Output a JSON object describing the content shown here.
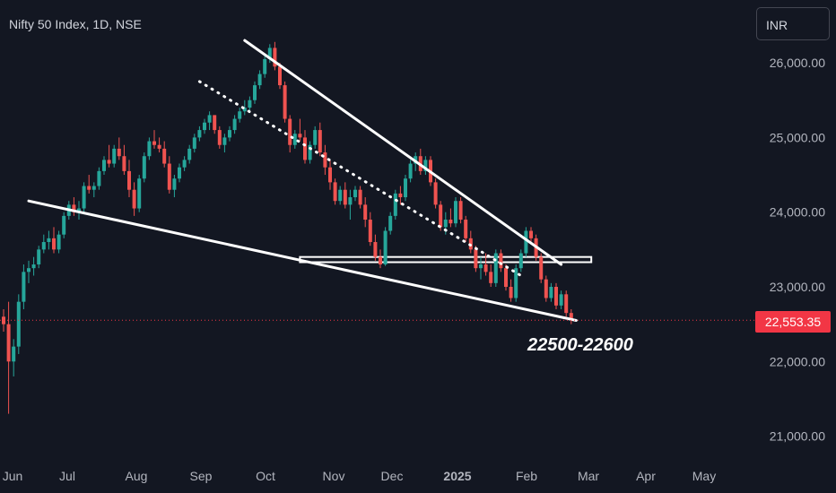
{
  "header": {
    "title": "Nifty 50 Index, 1D, NSE",
    "currency": "INR"
  },
  "colors": {
    "background": "#131722",
    "up": "#26a69a",
    "down": "#ef5350",
    "trendline": "#ffffff",
    "last_price": "#f23645",
    "axis_text": "#b2b5be"
  },
  "chart_data": {
    "type": "candlestick",
    "symbol": "Nifty 50 Index",
    "interval": "1D",
    "exchange": "NSE",
    "y_ticks": [
      "21,000.00",
      "22,000.00",
      "23,000.00",
      "24,000.00",
      "25,000.00",
      "26,000.00"
    ],
    "ylim": [
      20600,
      26800
    ],
    "x_ticks": [
      "Jun",
      "Jul",
      "Aug",
      "Sep",
      "Oct",
      "Nov",
      "Dec",
      "2025",
      "Feb",
      "Mar",
      "Apr",
      "May"
    ],
    "last_price": 22553.35,
    "last_price_label": "22,553.35",
    "annotation": "22500-22600",
    "grid": false,
    "ohlc": [
      [
        22600,
        22700,
        22400,
        22500
      ],
      [
        22500,
        22800,
        21300,
        22000
      ],
      [
        22000,
        22300,
        21800,
        22200
      ],
      [
        22200,
        22900,
        22100,
        22800
      ],
      [
        22800,
        23300,
        22700,
        23200
      ],
      [
        23200,
        23350,
        23050,
        23250
      ],
      [
        23250,
        23400,
        23150,
        23300
      ],
      [
        23300,
        23550,
        23250,
        23500
      ],
      [
        23500,
        23700,
        23450,
        23600
      ],
      [
        23600,
        23750,
        23500,
        23650
      ],
      [
        23650,
        23800,
        23450,
        23500
      ],
      [
        23500,
        23750,
        23450,
        23700
      ],
      [
        23700,
        24000,
        23650,
        23950
      ],
      [
        23950,
        24150,
        23900,
        24100
      ],
      [
        24100,
        24200,
        23950,
        24000
      ],
      [
        24000,
        24150,
        23900,
        24050
      ],
      [
        24050,
        24400,
        24000,
        24350
      ],
      [
        24350,
        24500,
        24250,
        24300
      ],
      [
        24300,
        24400,
        24200,
        24350
      ],
      [
        24350,
        24600,
        24300,
        24550
      ],
      [
        24550,
        24750,
        24500,
        24700
      ],
      [
        24700,
        24900,
        24600,
        24650
      ],
      [
        24650,
        24900,
        24600,
        24850
      ],
      [
        24850,
        25000,
        24700,
        24750
      ],
      [
        24750,
        24900,
        24500,
        24550
      ],
      [
        24550,
        24700,
        24200,
        24300
      ],
      [
        24300,
        24400,
        23950,
        24050
      ],
      [
        24050,
        24500,
        24000,
        24450
      ],
      [
        24450,
        24800,
        24400,
        24750
      ],
      [
        24750,
        25000,
        24700,
        24950
      ],
      [
        24950,
        25100,
        24850,
        24900
      ],
      [
        24900,
        25000,
        24800,
        24850
      ],
      [
        24850,
        24950,
        24600,
        24650
      ],
      [
        24650,
        24750,
        24250,
        24300
      ],
      [
        24300,
        24500,
        24200,
        24450
      ],
      [
        24450,
        24650,
        24400,
        24600
      ],
      [
        24600,
        24750,
        24550,
        24700
      ],
      [
        24700,
        24900,
        24650,
        24850
      ],
      [
        24850,
        25050,
        24800,
        25000
      ],
      [
        25000,
        25150,
        24950,
        25100
      ],
      [
        25100,
        25250,
        25050,
        25200
      ],
      [
        25200,
        25350,
        25100,
        25300
      ],
      [
        25300,
        25300,
        25050,
        25100
      ],
      [
        25100,
        25150,
        24850,
        24900
      ],
      [
        24900,
        25050,
        24800,
        25000
      ],
      [
        25000,
        25150,
        24950,
        25100
      ],
      [
        25100,
        25300,
        25050,
        25250
      ],
      [
        25250,
        25400,
        25200,
        25350
      ],
      [
        25350,
        25500,
        25300,
        25400
      ],
      [
        25400,
        25550,
        25350,
        25500
      ],
      [
        25500,
        25750,
        25450,
        25700
      ],
      [
        25700,
        25900,
        25650,
        25850
      ],
      [
        25850,
        26100,
        25800,
        26050
      ],
      [
        26050,
        26250,
        26000,
        26200
      ],
      [
        26200,
        26280,
        25900,
        25950
      ],
      [
        25950,
        26000,
        25650,
        25700
      ],
      [
        25700,
        25750,
        25200,
        25250
      ],
      [
        25250,
        25300,
        24800,
        24900
      ],
      [
        24900,
        25100,
        24850,
        25050
      ],
      [
        25050,
        25250,
        24950,
        25000
      ],
      [
        25000,
        25100,
        24650,
        24700
      ],
      [
        24700,
        24950,
        24650,
        24900
      ],
      [
        24900,
        25150,
        24850,
        25100
      ],
      [
        25100,
        25200,
        24750,
        24800
      ],
      [
        24800,
        24900,
        24500,
        24600
      ],
      [
        24600,
        24700,
        24300,
        24400
      ],
      [
        24400,
        24450,
        24100,
        24150
      ],
      [
        24150,
        24350,
        24100,
        24300
      ],
      [
        24300,
        24400,
        24050,
        24100
      ],
      [
        24100,
        24300,
        23900,
        24200
      ],
      [
        24200,
        24350,
        24150,
        24300
      ],
      [
        24300,
        24350,
        24050,
        24100
      ],
      [
        24100,
        24200,
        23800,
        23900
      ],
      [
        23900,
        24000,
        23550,
        23600
      ],
      [
        23600,
        23700,
        23350,
        23400
      ],
      [
        23400,
        23500,
        23250,
        23300
      ],
      [
        23300,
        23800,
        23280,
        23750
      ],
      [
        23750,
        24000,
        23700,
        23950
      ],
      [
        23950,
        24300,
        23900,
        24250
      ],
      [
        24250,
        24350,
        24100,
        24200
      ],
      [
        24200,
        24500,
        24150,
        24450
      ],
      [
        24450,
        24700,
        24400,
        24650
      ],
      [
        24650,
        24800,
        24550,
        24750
      ],
      [
        24750,
        24850,
        24500,
        24550
      ],
      [
        24550,
        24750,
        24500,
        24700
      ],
      [
        24700,
        24750,
        24350,
        24400
      ],
      [
        24400,
        24450,
        24050,
        24100
      ],
      [
        24100,
        24150,
        23750,
        23800
      ],
      [
        23800,
        24000,
        23700,
        23900
      ],
      [
        23900,
        24050,
        23800,
        23850
      ],
      [
        23850,
        24200,
        23800,
        24150
      ],
      [
        24150,
        24200,
        23850,
        23900
      ],
      [
        23900,
        23950,
        23600,
        23650
      ],
      [
        23650,
        23750,
        23450,
        23500
      ],
      [
        23500,
        23550,
        23200,
        23250
      ],
      [
        23250,
        23400,
        23100,
        23300
      ],
      [
        23300,
        23450,
        23150,
        23200
      ],
      [
        23200,
        23300,
        23000,
        23050
      ],
      [
        23050,
        23500,
        23000,
        23450
      ],
      [
        23450,
        23500,
        23200,
        23250
      ],
      [
        23250,
        23300,
        22950,
        23000
      ],
      [
        23000,
        23100,
        22800,
        22850
      ],
      [
        22850,
        23300,
        22800,
        23250
      ],
      [
        23250,
        23500,
        23200,
        23450
      ],
      [
        23450,
        23800,
        23400,
        23750
      ],
      [
        23750,
        23800,
        23600,
        23650
      ],
      [
        23650,
        23700,
        23350,
        23400
      ],
      [
        23400,
        23450,
        23050,
        23100
      ],
      [
        23100,
        23150,
        22800,
        22850
      ],
      [
        22850,
        23050,
        22800,
        23000
      ],
      [
        23000,
        23050,
        22700,
        22750
      ],
      [
        22750,
        22950,
        22700,
        22900
      ],
      [
        22900,
        22950,
        22600,
        22650
      ],
      [
        22650,
        22700,
        22500,
        22550
      ]
    ],
    "trendlines": [
      {
        "name": "upper",
        "from": [
          48,
          26300
        ],
        "to": [
          111,
          23300
        ]
      },
      {
        "name": "lower",
        "from": [
          5,
          24150
        ],
        "to": [
          114,
          22550
        ]
      },
      {
        "name": "dotted",
        "from": [
          39,
          25750
        ],
        "to": [
          103,
          23150
        ]
      }
    ],
    "zones": [
      {
        "from_x": 59,
        "to_x": 117,
        "from_y": 23330,
        "to_y": 23400
      }
    ]
  }
}
